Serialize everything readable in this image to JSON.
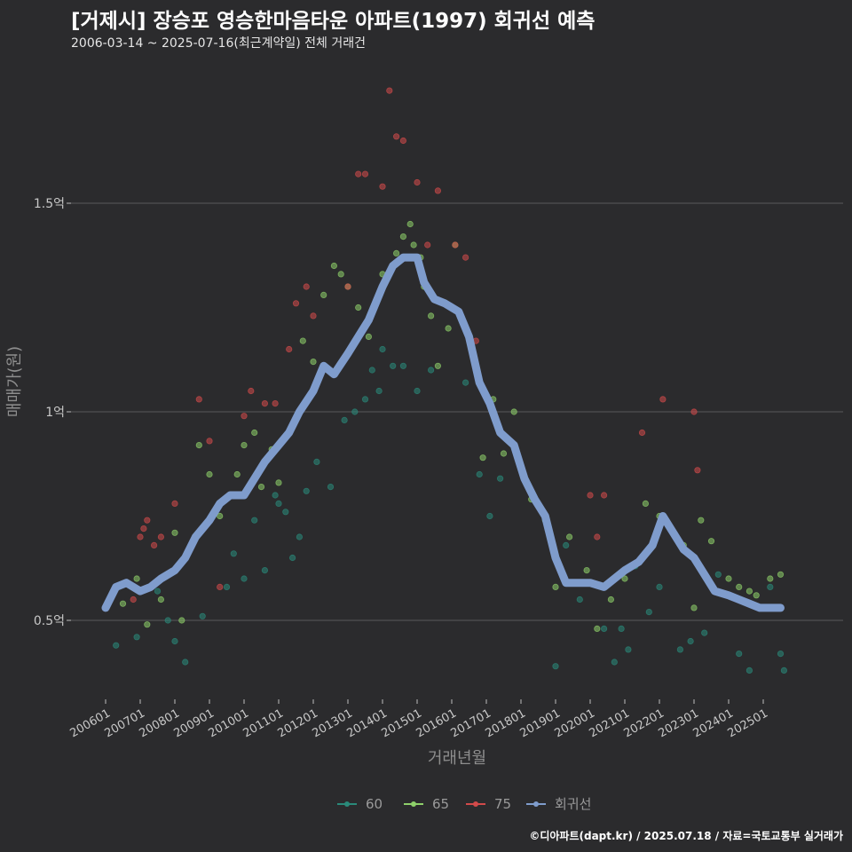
{
  "title": "[거제시] 장승포 영승한마음타운 아파트(1997) 회귀선 예측",
  "subtitle": "2006-03-14 ~ 2025-07-16(최근계약일) 전체 거래건",
  "caption": "©디아파트(dapt.kr) / 2025.07.18 / 자료=국토교통부 실거래가",
  "chart_data": {
    "type": "scatter",
    "title": "[거제시] 장승포 영승한마음타운 아파트(1997) 회귀선 예측",
    "xlabel": "거래년월",
    "ylabel": "매매가(원)",
    "ylim": [
      0.3,
      1.8
    ],
    "xlim": [
      2006.0,
      2026.0
    ],
    "y_ticks": [
      {
        "value": 0.5,
        "label": "0.5억"
      },
      {
        "value": 1.0,
        "label": "1억"
      },
      {
        "value": 1.5,
        "label": "1.5억"
      }
    ],
    "x_ticks": [
      "200601",
      "200701",
      "200801",
      "200901",
      "201001",
      "201101",
      "201201",
      "201301",
      "201401",
      "201501",
      "201601",
      "201701",
      "201801",
      "201901",
      "202001",
      "202101",
      "202201",
      "202301",
      "202401",
      "202501"
    ],
    "legend": {
      "position": "bottom",
      "entries": [
        {
          "name": "60",
          "color": "#2a8a7a"
        },
        {
          "name": "65",
          "color": "#8ed06a"
        },
        {
          "name": "75",
          "color": "#d24a4a"
        },
        {
          "name": "회귀선",
          "color": "#7f9ccc"
        }
      ]
    },
    "series": [
      {
        "name": "60",
        "color": "#2a8a7a",
        "points": [
          [
            2006.3,
            0.44
          ],
          [
            2006.9,
            0.46
          ],
          [
            2007.5,
            0.57
          ],
          [
            2007.8,
            0.5
          ],
          [
            2008.0,
            0.45
          ],
          [
            2008.3,
            0.4
          ],
          [
            2008.8,
            0.51
          ],
          [
            2009.5,
            0.58
          ],
          [
            2009.7,
            0.66
          ],
          [
            2010.0,
            0.6
          ],
          [
            2010.3,
            0.74
          ],
          [
            2010.6,
            0.62
          ],
          [
            2010.9,
            0.8
          ],
          [
            2011.0,
            0.78
          ],
          [
            2011.2,
            0.76
          ],
          [
            2011.4,
            0.65
          ],
          [
            2011.6,
            0.7
          ],
          [
            2011.8,
            0.81
          ],
          [
            2012.1,
            0.88
          ],
          [
            2012.5,
            0.82
          ],
          [
            2012.9,
            0.98
          ],
          [
            2013.2,
            1.0
          ],
          [
            2013.5,
            1.03
          ],
          [
            2013.7,
            1.1
          ],
          [
            2013.9,
            1.05
          ],
          [
            2014.0,
            1.15
          ],
          [
            2014.3,
            1.11
          ],
          [
            2014.6,
            1.11
          ],
          [
            2015.0,
            1.05
          ],
          [
            2015.4,
            1.1
          ],
          [
            2016.4,
            1.07
          ],
          [
            2016.8,
            0.85
          ],
          [
            2017.1,
            0.75
          ],
          [
            2017.4,
            0.84
          ],
          [
            2019.0,
            0.39
          ],
          [
            2019.3,
            0.68
          ],
          [
            2019.7,
            0.55
          ],
          [
            2020.4,
            0.48
          ],
          [
            2020.7,
            0.4
          ],
          [
            2020.9,
            0.48
          ],
          [
            2021.1,
            0.43
          ],
          [
            2021.3,
            0.63
          ],
          [
            2021.7,
            0.52
          ],
          [
            2022.0,
            0.58
          ],
          [
            2022.6,
            0.43
          ],
          [
            2022.9,
            0.45
          ],
          [
            2023.3,
            0.47
          ],
          [
            2023.7,
            0.61
          ],
          [
            2024.3,
            0.42
          ],
          [
            2024.6,
            0.38
          ],
          [
            2025.2,
            0.58
          ],
          [
            2025.5,
            0.53
          ],
          [
            2025.5,
            0.42
          ],
          [
            2025.6,
            0.38
          ]
        ]
      },
      {
        "name": "65",
        "color": "#8ed06a",
        "points": [
          [
            2006.5,
            0.54
          ],
          [
            2006.9,
            0.6
          ],
          [
            2007.2,
            0.49
          ],
          [
            2007.6,
            0.55
          ],
          [
            2008.0,
            0.71
          ],
          [
            2008.2,
            0.5
          ],
          [
            2008.7,
            0.92
          ],
          [
            2009.0,
            0.85
          ],
          [
            2009.3,
            0.75
          ],
          [
            2009.6,
            0.8
          ],
          [
            2009.8,
            0.85
          ],
          [
            2010.0,
            0.92
          ],
          [
            2010.3,
            0.95
          ],
          [
            2010.5,
            0.82
          ],
          [
            2010.8,
            0.91
          ],
          [
            2011.0,
            0.83
          ],
          [
            2011.3,
            0.95
          ],
          [
            2011.7,
            1.17
          ],
          [
            2012.0,
            1.12
          ],
          [
            2012.3,
            1.28
          ],
          [
            2012.6,
            1.35
          ],
          [
            2012.8,
            1.33
          ],
          [
            2013.0,
            1.3
          ],
          [
            2013.3,
            1.25
          ],
          [
            2013.6,
            1.18
          ],
          [
            2013.9,
            1.28
          ],
          [
            2014.0,
            1.33
          ],
          [
            2014.4,
            1.38
          ],
          [
            2014.6,
            1.42
          ],
          [
            2014.8,
            1.45
          ],
          [
            2014.9,
            1.4
          ],
          [
            2015.1,
            1.37
          ],
          [
            2015.2,
            1.3
          ],
          [
            2015.4,
            1.23
          ],
          [
            2015.6,
            1.11
          ],
          [
            2015.9,
            1.2
          ],
          [
            2016.1,
            1.4
          ],
          [
            2016.9,
            0.89
          ],
          [
            2017.2,
            1.03
          ],
          [
            2017.5,
            0.9
          ],
          [
            2017.8,
            1.0
          ],
          [
            2018.3,
            0.79
          ],
          [
            2018.7,
            0.74
          ],
          [
            2019.0,
            0.58
          ],
          [
            2019.4,
            0.7
          ],
          [
            2019.9,
            0.62
          ],
          [
            2020.2,
            0.48
          ],
          [
            2020.6,
            0.55
          ],
          [
            2021.0,
            0.6
          ],
          [
            2021.6,
            0.78
          ],
          [
            2022.0,
            0.75
          ],
          [
            2022.7,
            0.68
          ],
          [
            2023.0,
            0.53
          ],
          [
            2023.2,
            0.74
          ],
          [
            2023.5,
            0.69
          ],
          [
            2024.0,
            0.6
          ],
          [
            2024.3,
            0.58
          ],
          [
            2024.6,
            0.57
          ],
          [
            2024.8,
            0.56
          ],
          [
            2025.2,
            0.6
          ],
          [
            2025.5,
            0.61
          ]
        ]
      },
      {
        "name": "75",
        "color": "#d24a4a",
        "points": [
          [
            2006.8,
            0.55
          ],
          [
            2007.0,
            0.7
          ],
          [
            2007.1,
            0.72
          ],
          [
            2007.2,
            0.74
          ],
          [
            2007.4,
            0.68
          ],
          [
            2007.6,
            0.7
          ],
          [
            2008.0,
            0.78
          ],
          [
            2008.7,
            1.03
          ],
          [
            2009.0,
            0.93
          ],
          [
            2009.3,
            0.58
          ],
          [
            2010.0,
            0.99
          ],
          [
            2010.2,
            1.05
          ],
          [
            2010.6,
            1.02
          ],
          [
            2010.9,
            1.02
          ],
          [
            2011.3,
            1.15
          ],
          [
            2011.5,
            1.26
          ],
          [
            2011.8,
            1.3
          ],
          [
            2012.0,
            1.23
          ],
          [
            2013.0,
            1.3
          ],
          [
            2013.3,
            1.57
          ],
          [
            2013.5,
            1.57
          ],
          [
            2014.0,
            1.54
          ],
          [
            2014.2,
            1.77
          ],
          [
            2014.4,
            1.66
          ],
          [
            2014.6,
            1.65
          ],
          [
            2015.0,
            1.55
          ],
          [
            2015.3,
            1.4
          ],
          [
            2015.6,
            1.53
          ],
          [
            2016.1,
            1.4
          ],
          [
            2016.4,
            1.37
          ],
          [
            2016.7,
            1.17
          ],
          [
            2020.0,
            0.8
          ],
          [
            2020.4,
            0.8
          ],
          [
            2020.2,
            0.7
          ],
          [
            2021.5,
            0.95
          ],
          [
            2022.1,
            1.03
          ],
          [
            2023.0,
            1.0
          ],
          [
            2023.1,
            0.86
          ]
        ]
      },
      {
        "name": "회귀선",
        "color": "#7f9ccc",
        "points": [
          [
            2006.0,
            0.53
          ],
          [
            2006.3,
            0.58
          ],
          [
            2006.6,
            0.59
          ],
          [
            2007.0,
            0.57
          ],
          [
            2007.3,
            0.58
          ],
          [
            2007.6,
            0.6
          ],
          [
            2008.0,
            0.62
          ],
          [
            2008.3,
            0.65
          ],
          [
            2008.6,
            0.7
          ],
          [
            2009.0,
            0.74
          ],
          [
            2009.3,
            0.78
          ],
          [
            2009.6,
            0.8
          ],
          [
            2010.0,
            0.8
          ],
          [
            2010.3,
            0.84
          ],
          [
            2010.6,
            0.88
          ],
          [
            2011.0,
            0.92
          ],
          [
            2011.3,
            0.95
          ],
          [
            2011.6,
            1.0
          ],
          [
            2012.0,
            1.05
          ],
          [
            2012.3,
            1.11
          ],
          [
            2012.6,
            1.09
          ],
          [
            2013.0,
            1.14
          ],
          [
            2013.3,
            1.18
          ],
          [
            2013.6,
            1.22
          ],
          [
            2014.0,
            1.3
          ],
          [
            2014.3,
            1.35
          ],
          [
            2014.6,
            1.37
          ],
          [
            2015.0,
            1.37
          ],
          [
            2015.2,
            1.31
          ],
          [
            2015.5,
            1.27
          ],
          [
            2015.8,
            1.26
          ],
          [
            2016.2,
            1.24
          ],
          [
            2016.5,
            1.18
          ],
          [
            2016.8,
            1.07
          ],
          [
            2017.1,
            1.02
          ],
          [
            2017.4,
            0.95
          ],
          [
            2017.8,
            0.92
          ],
          [
            2018.1,
            0.84
          ],
          [
            2018.4,
            0.79
          ],
          [
            2018.7,
            0.75
          ],
          [
            2019.0,
            0.65
          ],
          [
            2019.3,
            0.59
          ],
          [
            2019.6,
            0.59
          ],
          [
            2020.0,
            0.59
          ],
          [
            2020.4,
            0.58
          ],
          [
            2020.7,
            0.6
          ],
          [
            2021.0,
            0.62
          ],
          [
            2021.4,
            0.64
          ],
          [
            2021.8,
            0.68
          ],
          [
            2022.1,
            0.75
          ],
          [
            2022.4,
            0.71
          ],
          [
            2022.7,
            0.67
          ],
          [
            2023.0,
            0.65
          ],
          [
            2023.3,
            0.61
          ],
          [
            2023.6,
            0.57
          ],
          [
            2024.0,
            0.56
          ],
          [
            2024.3,
            0.55
          ],
          [
            2024.6,
            0.54
          ],
          [
            2024.9,
            0.53
          ],
          [
            2025.2,
            0.53
          ],
          [
            2025.5,
            0.53
          ]
        ]
      }
    ]
  }
}
